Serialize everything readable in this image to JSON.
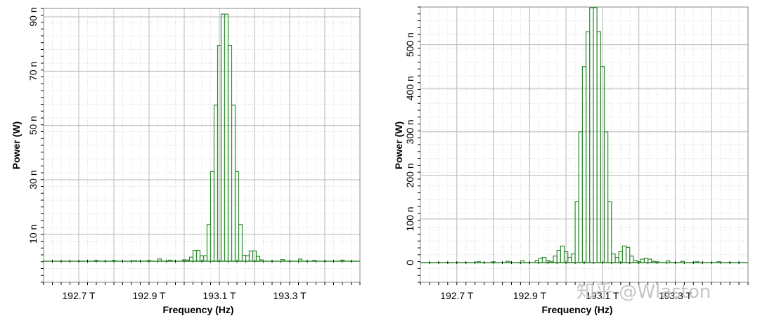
{
  "chart_data": [
    {
      "type": "bar",
      "xlabel": "Frequency (Hz)",
      "ylabel": "Power (W)",
      "xlim": [
        192.6,
        193.5
      ],
      "ylim": [
        0,
        90
      ],
      "x_ticks": [
        {
          "value": 192.7,
          "label": "192.7 T"
        },
        {
          "value": 192.9,
          "label": "192.9 T"
        },
        {
          "value": 193.1,
          "label": "193.1 T"
        },
        {
          "value": 193.3,
          "label": "193.3 T"
        }
      ],
      "y_ticks": [
        {
          "value": 10,
          "label": "10 n"
        },
        {
          "value": 30,
          "label": "30 n"
        },
        {
          "value": 50,
          "label": "50 n"
        },
        {
          "value": 70,
          "label": "70 n"
        },
        {
          "value": 90,
          "label": "90 n"
        }
      ],
      "grid": true,
      "line_color": "#2e8b2e",
      "bin_width": 0.01,
      "x": [
        192.93,
        193.0,
        193.01,
        193.02,
        193.03,
        193.04,
        193.05,
        193.06,
        193.07,
        193.08,
        193.09,
        193.1,
        193.11,
        193.12,
        193.13,
        193.14,
        193.15,
        193.16,
        193.17,
        193.18,
        193.19,
        193.2,
        193.21,
        193.22
      ],
      "values": [
        0.8,
        0.5,
        0.4,
        1.5,
        4.0,
        4.0,
        2.0,
        2.0,
        13.5,
        33.0,
        57.5,
        79.5,
        91.0,
        91.0,
        79.5,
        57.5,
        33.0,
        13.5,
        2.2,
        2.0,
        3.8,
        3.8,
        1.8,
        0.5
      ],
      "noise_x": [
        192.75,
        192.8,
        192.86,
        192.9,
        192.96,
        193.28,
        193.33,
        193.37,
        193.45
      ],
      "noise_values": [
        0.3,
        0.3,
        0.2,
        0.3,
        0.4,
        0.6,
        0.8,
        0.3,
        0.4
      ]
    },
    {
      "type": "bar",
      "xlabel": "Frequency (Hz)",
      "ylabel": "Power (W)",
      "xlim": [
        192.6,
        193.5
      ],
      "ylim": [
        0,
        580
      ],
      "x_ticks": [
        {
          "value": 192.7,
          "label": "192.7 T"
        },
        {
          "value": 192.9,
          "label": "192.9 T"
        },
        {
          "value": 193.1,
          "label": "193.1 T"
        },
        {
          "value": 193.3,
          "label": "193.3 T"
        }
      ],
      "y_ticks": [
        {
          "value": 0,
          "label": "0"
        },
        {
          "value": 100,
          "label": "100 n"
        },
        {
          "value": 200,
          "label": "200 n"
        },
        {
          "value": 300,
          "label": "300 n"
        },
        {
          "value": 400,
          "label": "400 n"
        },
        {
          "value": 500,
          "label": "500 n"
        }
      ],
      "grid": true,
      "line_color": "#2e8b2e",
      "bin_width": 0.01,
      "x": [
        192.92,
        192.93,
        192.94,
        192.95,
        192.96,
        192.97,
        192.98,
        192.99,
        193.0,
        193.01,
        193.02,
        193.03,
        193.04,
        193.05,
        193.06,
        193.07,
        193.08,
        193.09,
        193.1,
        193.11,
        193.12,
        193.13,
        193.14,
        193.15,
        193.16,
        193.17,
        193.18,
        193.19,
        193.2,
        193.21,
        193.22,
        193.23,
        193.24,
        193.25
      ],
      "values": [
        5,
        10,
        12,
        5,
        2,
        15,
        28,
        38,
        25,
        12,
        20,
        140,
        300,
        450,
        530,
        585,
        585,
        530,
        450,
        300,
        140,
        20,
        12,
        25,
        38,
        35,
        15,
        5,
        2,
        8,
        10,
        8,
        3,
        2
      ],
      "noise_x": [
        192.76,
        192.8,
        192.84,
        192.88,
        193.28,
        193.32,
        193.36,
        193.42
      ],
      "noise_values": [
        2,
        2,
        3,
        4,
        4,
        3,
        2,
        2
      ]
    }
  ],
  "watermark": "知乎 @Wlaston"
}
